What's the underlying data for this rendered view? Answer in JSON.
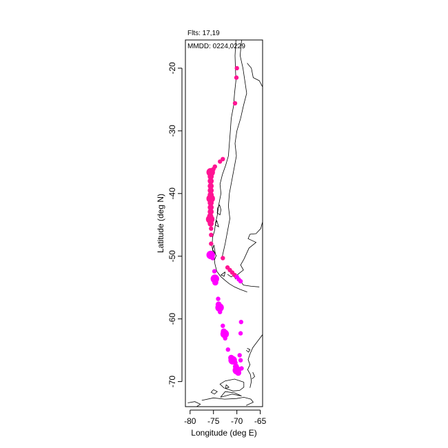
{
  "chart_data": {
    "type": "scatter",
    "xlabel": "Longitude (deg E)",
    "ylabel": "Latitude (deg N)",
    "xlim": [
      -81,
      -64.5
    ],
    "ylim": [
      -74,
      -15.5
    ],
    "xticks": [
      -80,
      -75,
      -70,
      -65
    ],
    "yticks": [
      -20,
      -30,
      -40,
      -50,
      -60,
      -70
    ],
    "annotations": [
      "Flts: 17,19",
      "MMDD: 0224,0229"
    ],
    "grid": false,
    "series": [
      {
        "color": "#ff1493",
        "points": [
          {
            "lon": -70.0,
            "lat": -20.0,
            "s": "sm"
          },
          {
            "lon": -70.1,
            "lat": -21.5,
            "s": "sm"
          },
          {
            "lon": -70.4,
            "lat": -25.6,
            "s": "sm"
          },
          {
            "lon": -73.0,
            "lat": -34.5,
            "s": "sm"
          },
          {
            "lon": -73.6,
            "lat": -34.9,
            "s": "sm"
          },
          {
            "lon": -74.7,
            "lat": -35.7,
            "s": "sm"
          },
          {
            "lon": -75.0,
            "lat": -36.1,
            "s": "sm"
          },
          {
            "lon": -75.6,
            "lat": -36.6,
            "s": "lg"
          },
          {
            "lon": -75.6,
            "lat": -37.3,
            "s": "md"
          },
          {
            "lon": -75.6,
            "lat": -38.0,
            "s": "md"
          },
          {
            "lon": -75.6,
            "lat": -38.8,
            "s": "md"
          },
          {
            "lon": -75.6,
            "lat": -39.5,
            "s": "md"
          },
          {
            "lon": -75.6,
            "lat": -40.2,
            "s": "md"
          },
          {
            "lon": -75.6,
            "lat": -40.8,
            "s": "lg"
          },
          {
            "lon": -75.6,
            "lat": -41.5,
            "s": "md"
          },
          {
            "lon": -75.6,
            "lat": -42.2,
            "s": "md"
          },
          {
            "lon": -75.6,
            "lat": -42.9,
            "s": "md"
          },
          {
            "lon": -75.7,
            "lat": -43.6,
            "s": "md"
          },
          {
            "lon": -75.7,
            "lat": -44.1,
            "s": "lg"
          },
          {
            "lon": -75.6,
            "lat": -44.8,
            "s": "md"
          },
          {
            "lon": -75.5,
            "lat": -45.6,
            "s": "sm"
          },
          {
            "lon": -75.5,
            "lat": -46.6,
            "s": "sm"
          },
          {
            "lon": -75.5,
            "lat": -48.0,
            "s": "sm"
          },
          {
            "lon": -73.0,
            "lat": -50.3,
            "s": "sm"
          },
          {
            "lon": -72.0,
            "lat": -51.8,
            "s": "sm"
          },
          {
            "lon": -71.5,
            "lat": -52.2,
            "s": "sm"
          },
          {
            "lon": -71.0,
            "lat": -52.6,
            "s": "sm"
          },
          {
            "lon": -70.5,
            "lat": -53.0,
            "s": "sm"
          }
        ]
      },
      {
        "color": "#ff00ff",
        "points": [
          {
            "lon": -75.6,
            "lat": -49.8,
            "s": "lg"
          },
          {
            "lon": -75.2,
            "lat": -50.3,
            "s": "sm"
          },
          {
            "lon": -70.0,
            "lat": -53.3,
            "s": "sm"
          },
          {
            "lon": -69.6,
            "lat": -53.7,
            "s": "sm"
          },
          {
            "lon": -69.2,
            "lat": -54.0,
            "s": "sm"
          },
          {
            "lon": -74.8,
            "lat": -52.4,
            "s": "sm"
          },
          {
            "lon": -74.7,
            "lat": -53.6,
            "s": "lg"
          },
          {
            "lon": -74.6,
            "lat": -54.2,
            "s": "md"
          },
          {
            "lon": -74.0,
            "lat": -56.8,
            "s": "sm"
          },
          {
            "lon": -73.9,
            "lat": -57.7,
            "s": "md"
          },
          {
            "lon": -73.7,
            "lat": -58.2,
            "s": "lg"
          },
          {
            "lon": -73.6,
            "lat": -58.9,
            "s": "sm"
          },
          {
            "lon": -73.0,
            "lat": -61.1,
            "s": "sm"
          },
          {
            "lon": -72.8,
            "lat": -62.0,
            "s": "md"
          },
          {
            "lon": -72.6,
            "lat": -62.4,
            "s": "lg"
          },
          {
            "lon": -72.5,
            "lat": -63.1,
            "s": "sm"
          },
          {
            "lon": -69.1,
            "lat": -60.5,
            "s": "sm"
          },
          {
            "lon": -69.2,
            "lat": -62.3,
            "s": "sm"
          },
          {
            "lon": -71.9,
            "lat": -64.9,
            "s": "sm"
          },
          {
            "lon": -71.2,
            "lat": -66.2,
            "s": "md"
          },
          {
            "lon": -70.9,
            "lat": -66.6,
            "s": "lg"
          },
          {
            "lon": -70.3,
            "lat": -67.0,
            "s": "sm"
          },
          {
            "lon": -69.4,
            "lat": -65.8,
            "s": "sm"
          },
          {
            "lon": -69.2,
            "lat": -66.6,
            "s": "sm"
          },
          {
            "lon": -70.2,
            "lat": -67.6,
            "s": "md"
          },
          {
            "lon": -70.0,
            "lat": -68.2,
            "s": "lg"
          },
          {
            "lon": -69.7,
            "lat": -68.6,
            "s": "md"
          },
          {
            "lon": -69.0,
            "lat": -67.9,
            "s": "sm"
          }
        ]
      }
    ],
    "map_lines": [
      [
        [
          -70.2,
          -15.5
        ],
        [
          -70.4,
          -18
        ],
        [
          -70.3,
          -20
        ],
        [
          -70.2,
          -22
        ],
        [
          -70.5,
          -24
        ],
        [
          -70.7,
          -26
        ],
        [
          -71.2,
          -28
        ],
        [
          -71.4,
          -30
        ],
        [
          -71.6,
          -32
        ],
        [
          -71.8,
          -34
        ],
        [
          -72.4,
          -35.5
        ],
        [
          -73.1,
          -37
        ],
        [
          -73.6,
          -38.5
        ],
        [
          -73.4,
          -40
        ],
        [
          -73.8,
          -41.5
        ],
        [
          -74.0,
          -42.5
        ],
        [
          -74.2,
          -43.5
        ],
        [
          -74.5,
          -44.5
        ],
        [
          -74.8,
          -46
        ],
        [
          -75.2,
          -47
        ],
        [
          -75.3,
          -48.5
        ],
        [
          -74.9,
          -50
        ],
        [
          -74.7,
          -51.2
        ],
        [
          -74.3,
          -52.4
        ],
        [
          -73.5,
          -53.2
        ],
        [
          -72.6,
          -53.8
        ],
        [
          -71.6,
          -54.4
        ],
        [
          -70.5,
          -54.9
        ],
        [
          -69.3,
          -55.3
        ],
        [
          -67.8,
          -55.7
        ]
      ],
      [
        [
          -69.0,
          -15.5
        ],
        [
          -69.3,
          -18
        ],
        [
          -68.7,
          -20
        ],
        [
          -68.2,
          -22.5
        ],
        [
          -67.9,
          -24
        ],
        [
          -68.6,
          -26
        ],
        [
          -69.2,
          -28
        ],
        [
          -70.0,
          -30
        ],
        [
          -70.4,
          -32
        ],
        [
          -70.1,
          -34
        ],
        [
          -70.6,
          -36
        ],
        [
          -71.1,
          -38
        ],
        [
          -71.6,
          -40
        ],
        [
          -71.8,
          -42
        ],
        [
          -71.5,
          -44
        ],
        [
          -72.0,
          -46
        ],
        [
          -72.5,
          -48
        ],
        [
          -73.1,
          -50
        ]
      ],
      [
        [
          -64.5,
          -23
        ],
        [
          -65.2,
          -22
        ],
        [
          -66.5,
          -21.5
        ],
        [
          -66.9,
          -20
        ],
        [
          -67.8,
          -19.2
        ]
      ],
      [
        [
          -64.5,
          -44.5
        ],
        [
          -64.9,
          -45.6
        ],
        [
          -65.9,
          -46.4
        ],
        [
          -67.2,
          -46.5
        ],
        [
          -67.6,
          -47.2
        ],
        [
          -65.9,
          -47.8
        ],
        [
          -67.4,
          -48.7
        ],
        [
          -68.5,
          -50.5
        ],
        [
          -69.2,
          -51.4
        ],
        [
          -68.6,
          -52.2
        ],
        [
          -69.3,
          -52.6
        ],
        [
          -70.1,
          -53.1
        ],
        [
          -68.6,
          -54.6
        ],
        [
          -66.9,
          -54.8
        ],
        [
          -65.2,
          -54.9
        ]
      ],
      [
        [
          -72.0,
          -52.9
        ],
        [
          -71.2,
          -53.3
        ],
        [
          -70.7,
          -53.0
        ],
        [
          -70.3,
          -53.6
        ],
        [
          -70.1,
          -52.8
        ]
      ],
      [
        [
          -73.7,
          -41.8
        ],
        [
          -74.1,
          -42.3
        ],
        [
          -74.2,
          -43.1
        ],
        [
          -73.6,
          -43.4
        ],
        [
          -73.4,
          -42.6
        ],
        [
          -73.7,
          -41.8
        ]
      ],
      [
        [
          -74.3,
          -44.3
        ],
        [
          -74.6,
          -45.0
        ],
        [
          -73.9,
          -45.3
        ],
        [
          -74.3,
          -44.3
        ]
      ],
      [
        [
          -74.9,
          -48.2
        ],
        [
          -75.2,
          -48.9
        ],
        [
          -74.6,
          -49.6
        ],
        [
          -74.9,
          -48.2
        ]
      ],
      [
        [
          -72.5,
          -52.5
        ],
        [
          -73.4,
          -53.0
        ],
        [
          -72.7,
          -53.2
        ],
        [
          -72.5,
          -52.5
        ]
      ],
      [
        [
          -75.0,
          -49.2
        ],
        [
          -74.4,
          -49.9
        ],
        [
          -74.8,
          -50.6
        ],
        [
          -75.1,
          -49.9
        ]
      ],
      [
        [
          -64.5,
          -62.5
        ],
        [
          -65.5,
          -63.5
        ],
        [
          -66.6,
          -64.6
        ],
        [
          -67.2,
          -65.6
        ],
        [
          -67.6,
          -66.5
        ],
        [
          -67.2,
          -67.3
        ],
        [
          -67.7,
          -68.1
        ],
        [
          -67.1,
          -68.9
        ],
        [
          -66.9,
          -70.0
        ],
        [
          -67.2,
          -71.0
        ]
      ],
      [
        [
          -68.5,
          -70.1
        ],
        [
          -70.5,
          -69.6
        ],
        [
          -72.5,
          -69.9
        ],
        [
          -73.6,
          -70.4
        ],
        [
          -72.8,
          -71.0
        ],
        [
          -70.8,
          -71.5
        ],
        [
          -69.4,
          -71.4
        ],
        [
          -68.5,
          -70.9
        ],
        [
          -68.5,
          -70.1
        ]
      ],
      [
        [
          -77.5,
          -73.0
        ],
        [
          -75.0,
          -72.6
        ],
        [
          -72.6,
          -72.8
        ],
        [
          -70.0,
          -72.7
        ],
        [
          -68.5,
          -72.5
        ],
        [
          -67.0,
          -72.8
        ],
        [
          -66.5,
          -73.3
        ],
        [
          -68.0,
          -73.8
        ]
      ],
      [
        [
          -73.5,
          -72.5
        ],
        [
          -71.0,
          -72.0
        ],
        [
          -69.0,
          -72.3
        ],
        [
          -70.5,
          -71.8
        ],
        [
          -72.5,
          -71.6
        ],
        [
          -73.5,
          -72.5
        ]
      ],
      [
        [
          -80.5,
          -73.4
        ],
        [
          -79.0,
          -73.2
        ],
        [
          -77.8,
          -73.6
        ],
        [
          -78.6,
          -74.0
        ]
      ],
      [
        [
          -75.0,
          -71.3
        ],
        [
          -74.2,
          -71.6
        ],
        [
          -74.8,
          -72.0
        ],
        [
          -75.5,
          -71.7
        ],
        [
          -75.0,
          -71.3
        ]
      ],
      [
        [
          -72.3,
          -70.5
        ],
        [
          -71.7,
          -70.9
        ],
        [
          -72.4,
          -71.1
        ],
        [
          -72.3,
          -70.5
        ]
      ],
      [
        [
          -67.8,
          -64.7
        ],
        [
          -67.2,
          -64.9
        ],
        [
          -67.5,
          -65.3
        ],
        [
          -68.0,
          -65.0
        ]
      ],
      [
        [
          -66.6,
          -68.5
        ],
        [
          -66.2,
          -69.2
        ],
        [
          -66.8,
          -69.6
        ]
      ]
    ]
  }
}
